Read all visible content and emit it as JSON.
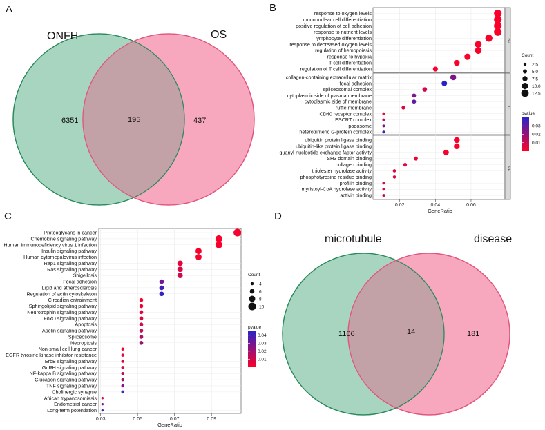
{
  "panels": [
    {
      "letter": "A"
    },
    {
      "letter": "B"
    },
    {
      "letter": "C"
    },
    {
      "letter": "D"
    }
  ],
  "colors": {
    "venn_left_fill": "#a8d5c0",
    "venn_left_stroke": "#2a8a5c",
    "venn_right_fill": "#f7a8bf",
    "venn_right_stroke": "#e0577e",
    "venn_overlap_fill": "#c2a2a7",
    "pvalue_low": "#ff0028",
    "pvalue_high": "#2a24c8"
  },
  "chart_data": [
    {
      "type": "venn",
      "panel": "A",
      "sets": [
        "ONFH",
        "OS"
      ],
      "left_only": "6351",
      "intersection": "195",
      "right_only": "437"
    },
    {
      "type": "scatter",
      "panel": "B",
      "subtype": "dot_plot",
      "xlabel": "GeneRatio",
      "xlim": [
        0.005,
        0.079
      ],
      "xticks": [
        0.02,
        0.04,
        0.06
      ],
      "xtick_labels": [
        "0.02",
        "0.04",
        "0.06"
      ],
      "size_legend": {
        "title": "Count",
        "values": [
          2.5,
          5.0,
          7.5,
          10.0,
          12.5
        ],
        "labels": [
          "2.5",
          "5.0",
          "7.5",
          "10.0",
          "12.5"
        ]
      },
      "color_legend": {
        "title": "pvalue",
        "ticks": [
          0.03,
          0.02,
          0.01
        ],
        "labels": [
          "0.03",
          "0.02",
          "0.01"
        ],
        "range": [
          0.0,
          0.04
        ]
      },
      "facets": [
        {
          "label": "BP",
          "terms": [
            {
              "term": "response to oxygen levels",
              "x": 0.075,
              "count": 13,
              "p": 0.001
            },
            {
              "term": "mononuclear cell differentiation",
              "x": 0.075,
              "count": 13,
              "p": 0.001
            },
            {
              "term": "positive regulation of cell adhesion",
              "x": 0.075,
              "count": 13,
              "p": 0.001
            },
            {
              "term": "response to nutrient levels",
              "x": 0.075,
              "count": 13,
              "p": 0.001
            },
            {
              "term": "lymphocyte differentiation",
              "x": 0.07,
              "count": 12,
              "p": 0.001
            },
            {
              "term": "response to decreased oxygen levels",
              "x": 0.064,
              "count": 11,
              "p": 0.001
            },
            {
              "term": "regulation of hemopoiesis",
              "x": 0.064,
              "count": 11,
              "p": 0.001
            },
            {
              "term": "response to hypoxia",
              "x": 0.058,
              "count": 10,
              "p": 0.001
            },
            {
              "term": "T cell differentiation",
              "x": 0.052,
              "count": 9,
              "p": 0.001
            },
            {
              "term": "regulation of T cell differentiation",
              "x": 0.04,
              "count": 7,
              "p": 0.001
            }
          ]
        },
        {
          "label": "CC",
          "terms": [
            {
              "term": "collagen-containing extracellular matrix",
              "x": 0.05,
              "count": 9,
              "p": 0.025
            },
            {
              "term": "focal adhesion",
              "x": 0.045,
              "count": 8,
              "p": 0.04
            },
            {
              "term": "spliceosomal complex",
              "x": 0.034,
              "count": 6,
              "p": 0.008
            },
            {
              "term": "cytoplasmic side of plasma membrane",
              "x": 0.028,
              "count": 5,
              "p": 0.025
            },
            {
              "term": "cytoplasmic side of membrane",
              "x": 0.028,
              "count": 5,
              "p": 0.03
            },
            {
              "term": "ruffle membrane",
              "x": 0.022,
              "count": 4,
              "p": 0.006
            },
            {
              "term": "CD40 receptor complex",
              "x": 0.011,
              "count": 2,
              "p": 0.003
            },
            {
              "term": "ESCRT complex",
              "x": 0.011,
              "count": 2,
              "p": 0.012
            },
            {
              "term": "podosome",
              "x": 0.011,
              "count": 2,
              "p": 0.028
            },
            {
              "term": "heterotrimeric G-protein complex",
              "x": 0.011,
              "count": 2,
              "p": 0.039
            }
          ]
        },
        {
          "label": "MF",
          "terms": [
            {
              "term": "ubiquitin protein ligase binding",
              "x": 0.052,
              "count": 9,
              "p": 0.001
            },
            {
              "term": "ubiquitin-like protein ligase binding",
              "x": 0.052,
              "count": 9,
              "p": 0.001
            },
            {
              "term": "guanyl-nucleotide exchange factor activity",
              "x": 0.046,
              "count": 8,
              "p": 0.002
            },
            {
              "term": "SH3 domain binding",
              "x": 0.029,
              "count": 5,
              "p": 0.003
            },
            {
              "term": "collagen binding",
              "x": 0.023,
              "count": 4,
              "p": 0.004
            },
            {
              "term": "thiolester hydrolase activity",
              "x": 0.017,
              "count": 3,
              "p": 0.006
            },
            {
              "term": "phosphotyrosine residue binding",
              "x": 0.017,
              "count": 3,
              "p": 0.006
            },
            {
              "term": "profilin binding",
              "x": 0.011,
              "count": 2,
              "p": 0.006
            },
            {
              "term": "myristoyl-CoA hydrolase activity",
              "x": 0.011,
              "count": 2,
              "p": 0.008
            },
            {
              "term": "activin binding",
              "x": 0.011,
              "count": 2,
              "p": 0.01
            }
          ]
        }
      ]
    },
    {
      "type": "scatter",
      "panel": "C",
      "subtype": "dot_plot",
      "xlabel": "GeneRatio",
      "xlim": [
        0.029,
        0.106
      ],
      "xticks": [
        0.03,
        0.05,
        0.07,
        0.09
      ],
      "xtick_labels": [
        "0.03",
        "0.05",
        "0.07",
        "0.09"
      ],
      "size_legend": {
        "title": "Count",
        "values": [
          4,
          6,
          8,
          10
        ],
        "labels": [
          "4",
          "6",
          "8",
          "10"
        ]
      },
      "color_legend": {
        "title": "pvalue",
        "ticks": [
          0.04,
          0.03,
          0.02,
          0.01
        ],
        "labels": [
          "0.04",
          "0.03",
          "0.02",
          "0.01"
        ],
        "range": [
          0.0,
          0.045
        ]
      },
      "terms": [
        {
          "term": "Proteoglycans in cancer",
          "x": 0.104,
          "count": 10,
          "p": 0.002
        },
        {
          "term": "Chemokine signaling pathway",
          "x": 0.094,
          "count": 9,
          "p": 0.001
        },
        {
          "term": "Human immunodeficiency virus 1 infection",
          "x": 0.094,
          "count": 9,
          "p": 0.001
        },
        {
          "term": "Insulin signaling pathway",
          "x": 0.083,
          "count": 8,
          "p": 0.001
        },
        {
          "term": "Human cytomegalovirus infection",
          "x": 0.083,
          "count": 8,
          "p": 0.002
        },
        {
          "term": "Rap1 signaling pathway",
          "x": 0.073,
          "count": 7,
          "p": 0.005
        },
        {
          "term": "Ras signaling pathway",
          "x": 0.073,
          "count": 7,
          "p": 0.008
        },
        {
          "term": "Shigellosis",
          "x": 0.073,
          "count": 7,
          "p": 0.01
        },
        {
          "term": "Focal adhesion",
          "x": 0.063,
          "count": 6,
          "p": 0.03
        },
        {
          "term": "Lipid and atherosclerosis",
          "x": 0.063,
          "count": 6,
          "p": 0.04
        },
        {
          "term": "Regulation of actin cytoskeleton",
          "x": 0.063,
          "count": 6,
          "p": 0.044
        },
        {
          "term": "Circadian entrainment",
          "x": 0.052,
          "count": 5,
          "p": 0.002
        },
        {
          "term": "Sphingolipid signaling pathway",
          "x": 0.052,
          "count": 5,
          "p": 0.004
        },
        {
          "term": "Neurotrophin signaling pathway",
          "x": 0.052,
          "count": 5,
          "p": 0.006
        },
        {
          "term": "FoxO signaling pathway",
          "x": 0.052,
          "count": 5,
          "p": 0.008
        },
        {
          "term": "Apoptosis",
          "x": 0.052,
          "count": 5,
          "p": 0.01
        },
        {
          "term": "Apelin signaling pathway",
          "x": 0.052,
          "count": 5,
          "p": 0.012
        },
        {
          "term": "Spliceosome",
          "x": 0.052,
          "count": 5,
          "p": 0.016
        },
        {
          "term": "Necroptosis",
          "x": 0.052,
          "count": 5,
          "p": 0.022
        },
        {
          "term": "Non-small cell lung cancer",
          "x": 0.042,
          "count": 4,
          "p": 0.002
        },
        {
          "term": "EGFR tyrosine kinase inhibitor resistance",
          "x": 0.042,
          "count": 4,
          "p": 0.006
        },
        {
          "term": "ErbB signaling pathway",
          "x": 0.042,
          "count": 4,
          "p": 0.007
        },
        {
          "term": "GnRH signaling pathway",
          "x": 0.042,
          "count": 4,
          "p": 0.01
        },
        {
          "term": "NF-kappa B signaling pathway",
          "x": 0.042,
          "count": 4,
          "p": 0.014
        },
        {
          "term": "Glucagon signaling pathway",
          "x": 0.042,
          "count": 4,
          "p": 0.02
        },
        {
          "term": "TNF signaling pathway",
          "x": 0.042,
          "count": 4,
          "p": 0.025
        },
        {
          "term": "Cholinergic synapse",
          "x": 0.042,
          "count": 4,
          "p": 0.04
        },
        {
          "term": "African trypanosomiasis",
          "x": 0.031,
          "count": 3,
          "p": 0.01
        },
        {
          "term": "Endometrial cancer",
          "x": 0.031,
          "count": 3,
          "p": 0.025
        },
        {
          "term": "Long-term potentiation",
          "x": 0.031,
          "count": 3,
          "p": 0.042
        }
      ]
    },
    {
      "type": "venn",
      "panel": "D",
      "sets": [
        "microtubule",
        "disease"
      ],
      "left_only": "1106",
      "intersection": "14",
      "right_only": "181"
    }
  ]
}
